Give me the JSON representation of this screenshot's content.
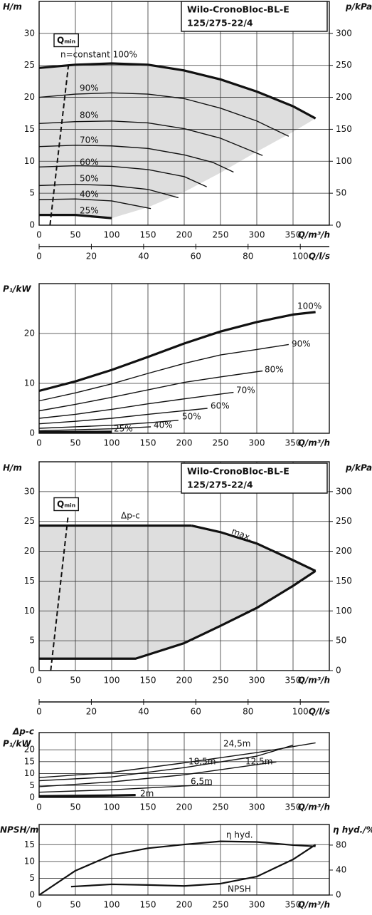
{
  "chart_data": [
    {
      "type": "line",
      "title": "Wilo-CronoBloc-BL-E",
      "subtitle": "125/275-22/4",
      "y_label": [
        "H/m"
      ],
      "y2_label": "p/kPa",
      "x_label": "Q/m³/h",
      "xlim": [
        0,
        400
      ],
      "xticks": [
        0,
        50,
        100,
        150,
        200,
        250,
        300,
        350
      ],
      "ylim": [
        0,
        35
      ],
      "yticks": [
        0,
        5,
        10,
        15,
        20,
        25,
        30
      ],
      "y2lim": [
        0,
        350
      ],
      "y2ticks": [
        0,
        50,
        100,
        150,
        200,
        250,
        300
      ],
      "grid": true,
      "x2": {
        "label": "Q/l/s",
        "xlim": [
          0,
          111.11
        ],
        "xticks": [
          0,
          20,
          40,
          60,
          80,
          100
        ]
      },
      "region": {
        "color": "#dedede",
        "x": [
          0,
          50,
          100,
          150,
          200,
          250,
          300,
          350,
          381,
          350,
          300,
          250,
          200,
          150,
          100,
          50,
          0
        ],
        "values": [
          24.6,
          25.1,
          25.3,
          25.1,
          24.2,
          22.8,
          20.9,
          18.6,
          16.7,
          14.6,
          11.5,
          8.2,
          5.2,
          2.8,
          1.1,
          1.6,
          1.6
        ]
      },
      "series": [
        {
          "name": "Qₘᵢₙ",
          "color": "#111111",
          "style": "dashed",
          "x": [
            15,
            41
          ],
          "values": [
            0,
            25.6
          ]
        },
        {
          "name": "n=constant 100%",
          "color": "#111111",
          "style": "thick",
          "x": [
            0,
            50,
            100,
            150,
            200,
            250,
            300,
            350,
            381
          ],
          "values": [
            24.6,
            25.1,
            25.3,
            25.1,
            24.2,
            22.8,
            20.9,
            18.6,
            16.7
          ]
        },
        {
          "name": "90%",
          "color": "#111111",
          "style": "thin",
          "x": [
            0,
            50,
            100,
            150,
            200,
            250,
            300,
            344
          ],
          "values": [
            20,
            20.5,
            20.7,
            20.5,
            19.8,
            18.3,
            16.3,
            13.9
          ]
        },
        {
          "name": "80%",
          "color": "#111111",
          "style": "thin",
          "x": [
            0,
            50,
            100,
            150,
            200,
            250,
            308
          ],
          "values": [
            15.9,
            16.2,
            16.3,
            16,
            15.1,
            13.6,
            10.9
          ]
        },
        {
          "name": "70%",
          "color": "#111111",
          "style": "thin",
          "x": [
            0,
            50,
            100,
            150,
            200,
            240,
            268
          ],
          "values": [
            12.3,
            12.5,
            12.4,
            12,
            11,
            9.8,
            8.3
          ]
        },
        {
          "name": "60%",
          "color": "#111111",
          "style": "thin",
          "x": [
            0,
            50,
            100,
            150,
            200,
            231
          ],
          "values": [
            9.1,
            9.3,
            9.2,
            8.7,
            7.6,
            6
          ]
        },
        {
          "name": "50%",
          "color": "#111111",
          "style": "thin",
          "x": [
            0,
            50,
            100,
            150,
            192
          ],
          "values": [
            6.2,
            6.4,
            6.2,
            5.6,
            4.3
          ]
        },
        {
          "name": "40%",
          "color": "#111111",
          "style": "thin",
          "x": [
            0,
            50,
            100,
            154
          ],
          "values": [
            4,
            4.1,
            3.8,
            2.6
          ]
        },
        {
          "name": "25%",
          "color": "#111111",
          "style": "thick",
          "x": [
            0,
            50,
            100
          ],
          "values": [
            1.6,
            1.6,
            1.1
          ]
        }
      ]
    },
    {
      "type": "line",
      "y_label": [
        "P₁/kW"
      ],
      "x_label": "Q/m³/h",
      "xlim": [
        0,
        400
      ],
      "xticks": [
        0,
        50,
        100,
        150,
        200,
        250,
        300,
        350
      ],
      "ylim": [
        0,
        30
      ],
      "yticks": [
        0,
        10,
        20
      ],
      "grid": true,
      "series": [
        {
          "name": "100%",
          "color": "#111111",
          "style": "thick",
          "x": [
            0,
            50,
            100,
            150,
            200,
            250,
            300,
            350,
            381
          ],
          "values": [
            8.5,
            10.4,
            12.7,
            15.3,
            18,
            20.4,
            22.3,
            23.8,
            24.3
          ]
        },
        {
          "name": "90%",
          "color": "#111111",
          "style": "thin",
          "x": [
            0,
            50,
            100,
            150,
            200,
            250,
            300,
            344
          ],
          "values": [
            6.5,
            8.1,
            9.9,
            12,
            14,
            15.7,
            16.8,
            17.8
          ]
        },
        {
          "name": "80%",
          "color": "#111111",
          "style": "thin",
          "x": [
            0,
            50,
            100,
            150,
            200,
            250,
            308
          ],
          "values": [
            4.5,
            5.8,
            7.2,
            8.7,
            10.2,
            11.3,
            12.5
          ]
        },
        {
          "name": "70%",
          "color": "#111111",
          "style": "thin",
          "x": [
            0,
            50,
            100,
            150,
            200,
            268
          ],
          "values": [
            3,
            3.8,
            4.8,
            5.9,
            6.9,
            8.2
          ]
        },
        {
          "name": "60%",
          "color": "#111111",
          "style": "thin",
          "x": [
            0,
            50,
            100,
            150,
            232
          ],
          "values": [
            1.9,
            2.4,
            3,
            3.8,
            5
          ]
        },
        {
          "name": "50%",
          "color": "#111111",
          "style": "thin",
          "x": [
            0,
            50,
            100,
            150,
            192
          ],
          "values": [
            1,
            1.3,
            1.6,
            2.1,
            2.6
          ]
        },
        {
          "name": "40%",
          "color": "#111111",
          "style": "thin",
          "x": [
            0,
            50,
            100,
            154
          ],
          "values": [
            0.5,
            0.7,
            0.9,
            1.3
          ]
        },
        {
          "name": "25%",
          "color": "#111111",
          "style": "thick",
          "x": [
            0,
            50,
            100
          ],
          "values": [
            0.2,
            0.25,
            0.3
          ]
        }
      ]
    },
    {
      "type": "line",
      "title": "Wilo-CronoBloc-BL-E",
      "subtitle": "125/275-22/4",
      "y_label": [
        "H/m"
      ],
      "y2_label": "p/kPa",
      "x_label": "Q/m³/h",
      "xlim": [
        0,
        400
      ],
      "xticks": [
        0,
        50,
        100,
        150,
        200,
        250,
        300,
        350
      ],
      "ylim": [
        0,
        35
      ],
      "yticks": [
        0,
        5,
        10,
        15,
        20,
        25,
        30
      ],
      "y2lim": [
        0,
        350
      ],
      "y2ticks": [
        0,
        50,
        100,
        150,
        200,
        250,
        300
      ],
      "grid": true,
      "x2": {
        "label": "Q/l/s",
        "xlim": [
          0,
          111.11
        ],
        "xticks": [
          0,
          20,
          40,
          60,
          80,
          100
        ]
      },
      "region": {
        "color": "#dedede",
        "x": [
          0,
          210,
          250,
          300,
          350,
          381,
          350,
          300,
          250,
          200,
          133,
          0
        ],
        "values": [
          24.3,
          24.3,
          23.2,
          21.3,
          18.5,
          16.7,
          14.2,
          10.5,
          7.5,
          4.6,
          2,
          2
        ]
      },
      "series": [
        {
          "name": "Qₘᵢₙ",
          "color": "#111111",
          "style": "dashed",
          "x": [
            16,
            40
          ],
          "values": [
            0,
            26
          ]
        },
        {
          "name": "Δp-c",
          "color": "#111111",
          "style": "thick",
          "x": [
            0,
            210
          ],
          "values": [
            24.3,
            24.3
          ]
        },
        {
          "name": "max.",
          "color": "#111111",
          "style": "thick",
          "x": [
            210,
            250,
            300,
            350,
            381
          ],
          "values": [
            24.3,
            23.2,
            21.3,
            18.5,
            16.7
          ]
        },
        {
          "color": "#111111",
          "style": "thick",
          "x": [
            0,
            133,
            200,
            250,
            300,
            350,
            381
          ],
          "values": [
            2,
            2,
            4.6,
            7.5,
            10.5,
            14.2,
            16.7
          ]
        }
      ]
    },
    {
      "type": "line",
      "y_label": [
        "Δp-c",
        "P₁/kW"
      ],
      "x_label": "Q/m³/h",
      "xlim": [
        0,
        400
      ],
      "xticks": [
        0,
        50,
        100,
        150,
        200,
        250,
        300,
        350
      ],
      "ylim": [
        0,
        27.2
      ],
      "yticks": [
        0,
        5,
        10,
        15,
        20
      ],
      "grid": true,
      "series": [
        {
          "name": "24,5m",
          "color": "#111111",
          "style": "thin",
          "x": [
            0,
            100,
            200,
            300,
            381
          ],
          "values": [
            8.3,
            10.5,
            14.5,
            18.8,
            22.9
          ]
        },
        {
          "name": "18,5m",
          "color": "#111111",
          "style": "thin",
          "x": [
            0,
            100,
            200,
            300,
            350
          ],
          "values": [
            7,
            8.6,
            12.5,
            17.3,
            21.9
          ]
        },
        {
          "name": "12,5m",
          "color": "#111111",
          "style": "thin",
          "x": [
            0,
            100,
            200,
            327
          ],
          "values": [
            4.5,
            6.5,
            9.5,
            14.9
          ]
        },
        {
          "name": "6,5m",
          "color": "#111111",
          "style": "thin",
          "x": [
            0,
            100,
            238
          ],
          "values": [
            2.2,
            3.2,
            5.4
          ]
        },
        {
          "name": "2m",
          "color": "#111111",
          "style": "thick",
          "x": [
            0,
            100,
            133
          ],
          "values": [
            0.5,
            0.8,
            1
          ]
        }
      ]
    },
    {
      "type": "line",
      "y_label": [
        "NPSH/m"
      ],
      "y2_label": "η hyd./%",
      "x_label": "Q/m³/h",
      "xlim": [
        0,
        400
      ],
      "xticks": [
        0,
        50,
        100,
        150,
        200,
        250,
        300,
        350
      ],
      "ylim": [
        0,
        21
      ],
      "yticks": [
        0,
        5,
        10,
        15
      ],
      "y2lim": [
        0,
        113
      ],
      "y2ticks": [
        0,
        40,
        80
      ],
      "grid": true,
      "series": [
        {
          "name": "η hyd.",
          "color": "#111111",
          "style": "medium",
          "axis": "y2",
          "x": [
            0,
            50,
            100,
            150,
            200,
            250,
            300,
            350,
            381
          ],
          "values": [
            0,
            39,
            64,
            75,
            81,
            86,
            85,
            80,
            78
          ]
        },
        {
          "name": "NPSH",
          "color": "#111111",
          "style": "medium",
          "x": [
            44,
            100,
            150,
            200,
            250,
            300,
            350,
            381
          ],
          "values": [
            2.5,
            3.2,
            3,
            2.7,
            3.4,
            5.5,
            10.6,
            15
          ]
        }
      ]
    }
  ]
}
